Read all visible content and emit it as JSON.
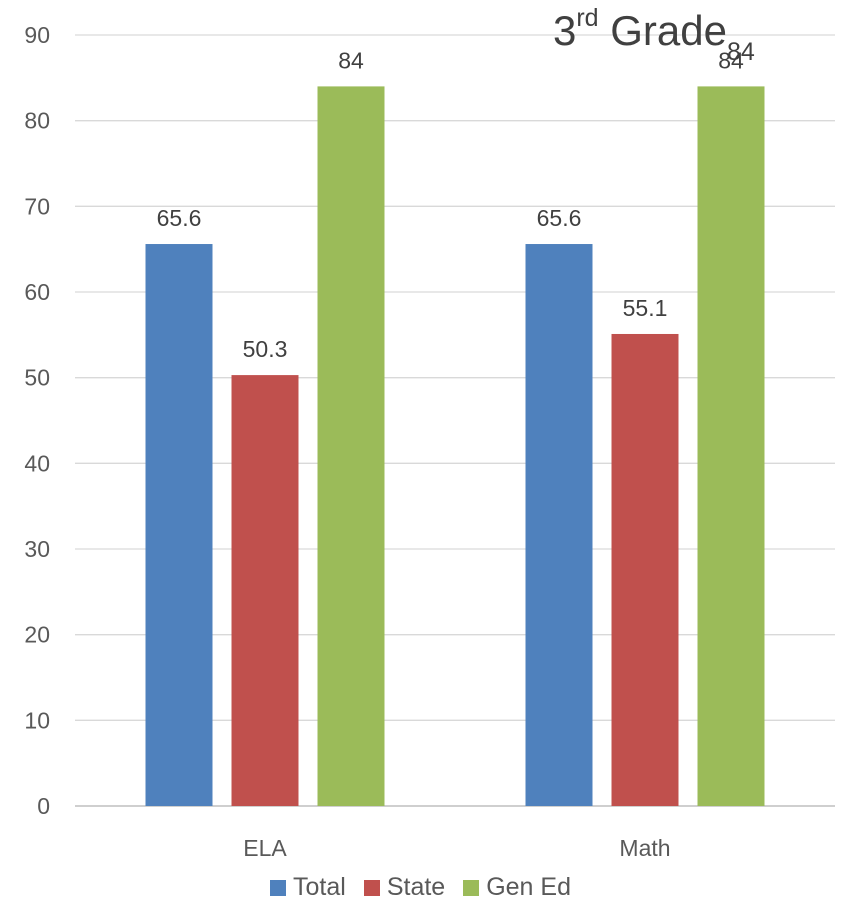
{
  "chart_data": {
    "type": "bar",
    "title": "3",
    "title_sup": "rd",
    "title_main": " Grade",
    "title_sub": "84",
    "categories": [
      "ELA",
      "Math"
    ],
    "series": [
      {
        "name": "Total",
        "values": [
          65.6,
          65.6
        ],
        "color": "#4f81bd",
        "labels": [
          "65.6",
          "65.6"
        ]
      },
      {
        "name": "State",
        "values": [
          50.3,
          55.1
        ],
        "color": "#c0504d",
        "labels": [
          "50.3",
          "55.1"
        ]
      },
      {
        "name": "Gen Ed",
        "values": [
          84,
          84
        ],
        "color": "#9bbb59",
        "labels": [
          "84",
          "84"
        ]
      }
    ],
    "ylim": [
      0,
      90
    ],
    "yticks": [
      0,
      10,
      20,
      30,
      40,
      50,
      60,
      70,
      80,
      90
    ],
    "grid": true,
    "legend": "bottom"
  }
}
